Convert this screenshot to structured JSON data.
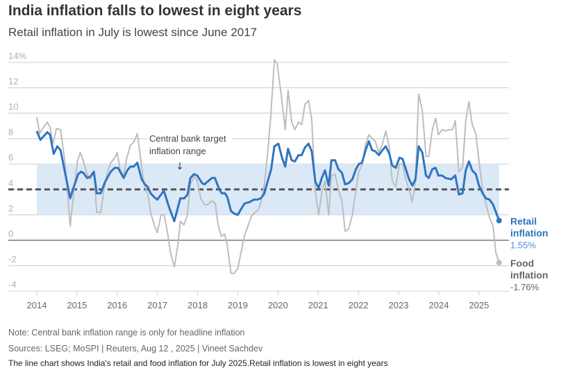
{
  "header": {
    "title": "India inflation falls to lowest in eight years",
    "subtitle": "Retail inflation in July is lowest since June 2017"
  },
  "chart_data": {
    "type": "line",
    "title": "India inflation falls to lowest in eight years",
    "xlabel": "",
    "ylabel": "%",
    "xlim": [
      2013.35,
      2025.85
    ],
    "ylim": [
      -4,
      14
    ],
    "x_ticks": [
      2014,
      2015,
      2016,
      2017,
      2018,
      2019,
      2020,
      2021,
      2022,
      2023,
      2024,
      2025
    ],
    "y_ticks": [
      {
        "v": 14,
        "label": "14%"
      },
      {
        "v": 12,
        "label": "12"
      },
      {
        "v": 10,
        "label": "10"
      },
      {
        "v": 8,
        "label": "8"
      },
      {
        "v": 6,
        "label": "6"
      },
      {
        "v": 4,
        "label": "4"
      },
      {
        "v": 2,
        "label": "2"
      },
      {
        "v": 0,
        "label": "0"
      },
      {
        "v": -2,
        "label": "-2"
      },
      {
        "v": -4,
        "label": "-4"
      }
    ],
    "target_band": {
      "low": 2,
      "high": 6,
      "midpoint": 4,
      "annotation_line1": "Central bank target",
      "annotation_line2": "inflation range",
      "arrow": "↓"
    },
    "series": [
      {
        "name": "Retail inflation",
        "label_line1": "Retail",
        "label_line2": "inflation",
        "last_value_label": "1.55%",
        "color": "#2f74c0",
        "points": [
          [
            2014.0,
            8.6
          ],
          [
            2014.09,
            7.9
          ],
          [
            2014.26,
            8.5
          ],
          [
            2014.33,
            8.3
          ],
          [
            2014.42,
            6.8
          ],
          [
            2014.51,
            7.4
          ],
          [
            2014.59,
            7.1
          ],
          [
            2014.69,
            5.5
          ],
          [
            2014.83,
            3.3
          ],
          [
            2014.92,
            4.2
          ],
          [
            2015.03,
            5.2
          ],
          [
            2015.1,
            5.4
          ],
          [
            2015.16,
            5.3
          ],
          [
            2015.25,
            4.9
          ],
          [
            2015.33,
            5.0
          ],
          [
            2015.42,
            5.4
          ],
          [
            2015.49,
            3.7
          ],
          [
            2015.59,
            3.7
          ],
          [
            2015.7,
            4.6
          ],
          [
            2015.84,
            5.4
          ],
          [
            2015.94,
            5.7
          ],
          [
            2016.02,
            5.7
          ],
          [
            2016.16,
            4.9
          ],
          [
            2016.25,
            5.5
          ],
          [
            2016.33,
            5.8
          ],
          [
            2016.41,
            5.8
          ],
          [
            2016.5,
            6.1
          ],
          [
            2016.61,
            4.8
          ],
          [
            2016.69,
            4.4
          ],
          [
            2016.76,
            4.2
          ],
          [
            2016.83,
            3.7
          ],
          [
            2016.92,
            3.4
          ],
          [
            2017.0,
            3.2
          ],
          [
            2017.16,
            3.9
          ],
          [
            2017.28,
            2.7
          ],
          [
            2017.42,
            1.5
          ],
          [
            2017.57,
            3.3
          ],
          [
            2017.67,
            3.3
          ],
          [
            2017.75,
            3.6
          ],
          [
            2017.82,
            4.9
          ],
          [
            2017.91,
            5.2
          ],
          [
            2017.99,
            5.1
          ],
          [
            2018.11,
            4.5
          ],
          [
            2018.17,
            4.4
          ],
          [
            2018.28,
            4.7
          ],
          [
            2018.36,
            4.9
          ],
          [
            2018.43,
            4.9
          ],
          [
            2018.54,
            4.0
          ],
          [
            2018.6,
            3.7
          ],
          [
            2018.68,
            3.7
          ],
          [
            2018.74,
            3.4
          ],
          [
            2018.83,
            2.3
          ],
          [
            2018.91,
            2.1
          ],
          [
            2019.0,
            2.0
          ],
          [
            2019.09,
            2.5
          ],
          [
            2019.17,
            2.9
          ],
          [
            2019.29,
            3.0
          ],
          [
            2019.4,
            3.2
          ],
          [
            2019.49,
            3.2
          ],
          [
            2019.57,
            3.3
          ],
          [
            2019.65,
            3.6
          ],
          [
            2019.75,
            4.7
          ],
          [
            2019.83,
            5.6
          ],
          [
            2019.91,
            7.4
          ],
          [
            2020.01,
            7.6
          ],
          [
            2020.1,
            6.5
          ],
          [
            2020.18,
            5.8
          ],
          [
            2020.25,
            7.2
          ],
          [
            2020.34,
            6.3
          ],
          [
            2020.42,
            6.2
          ],
          [
            2020.51,
            6.7
          ],
          [
            2020.59,
            6.7
          ],
          [
            2020.67,
            7.3
          ],
          [
            2020.76,
            7.6
          ],
          [
            2020.84,
            7.0
          ],
          [
            2020.93,
            4.6
          ],
          [
            2021.01,
            4.1
          ],
          [
            2021.09,
            4.9
          ],
          [
            2021.17,
            5.5
          ],
          [
            2021.26,
            4.3
          ],
          [
            2021.33,
            6.3
          ],
          [
            2021.42,
            6.3
          ],
          [
            2021.5,
            5.6
          ],
          [
            2021.59,
            5.3
          ],
          [
            2021.67,
            4.4
          ],
          [
            2021.76,
            4.5
          ],
          [
            2021.85,
            4.8
          ],
          [
            2021.94,
            5.6
          ],
          [
            2022.01,
            6.0
          ],
          [
            2022.09,
            6.1
          ],
          [
            2022.18,
            7.1
          ],
          [
            2022.26,
            7.8
          ],
          [
            2022.34,
            7.1
          ],
          [
            2022.42,
            7.0
          ],
          [
            2022.51,
            6.7
          ],
          [
            2022.6,
            7.1
          ],
          [
            2022.68,
            7.4
          ],
          [
            2022.77,
            6.8
          ],
          [
            2022.84,
            5.9
          ],
          [
            2022.93,
            5.7
          ],
          [
            2023.02,
            6.5
          ],
          [
            2023.1,
            6.4
          ],
          [
            2023.17,
            5.7
          ],
          [
            2023.26,
            4.8
          ],
          [
            2023.34,
            4.3
          ],
          [
            2023.42,
            4.8
          ],
          [
            2023.5,
            7.4
          ],
          [
            2023.59,
            6.9
          ],
          [
            2023.68,
            5.1
          ],
          [
            2023.75,
            4.9
          ],
          [
            2023.84,
            5.6
          ],
          [
            2023.92,
            5.7
          ],
          [
            2023.99,
            5.1
          ],
          [
            2024.08,
            5.1
          ],
          [
            2024.17,
            4.9
          ],
          [
            2024.31,
            4.8
          ],
          [
            2024.41,
            5.1
          ],
          [
            2024.5,
            3.6
          ],
          [
            2024.59,
            3.7
          ],
          [
            2024.67,
            5.5
          ],
          [
            2024.75,
            6.2
          ],
          [
            2024.83,
            5.5
          ],
          [
            2024.92,
            5.2
          ],
          [
            2025.0,
            4.3
          ],
          [
            2025.09,
            3.7
          ],
          [
            2025.17,
            3.3
          ],
          [
            2025.26,
            3.2
          ],
          [
            2025.35,
            2.8
          ],
          [
            2025.5,
            1.55
          ]
        ]
      },
      {
        "name": "Food inflation",
        "label_line1": "Food",
        "label_line2": "inflation",
        "last_value_label": "-1.76%",
        "color": "#bdbdbd",
        "points": [
          [
            2014.0,
            9.7
          ],
          [
            2014.07,
            8.4
          ],
          [
            2014.17,
            8.9
          ],
          [
            2014.26,
            9.3
          ],
          [
            2014.33,
            8.9
          ],
          [
            2014.4,
            7.6
          ],
          [
            2014.49,
            8.8
          ],
          [
            2014.59,
            8.7
          ],
          [
            2014.69,
            6.4
          ],
          [
            2014.76,
            4.0
          ],
          [
            2014.83,
            1.1
          ],
          [
            2014.92,
            3.8
          ],
          [
            2015.01,
            6.2
          ],
          [
            2015.08,
            6.9
          ],
          [
            2015.16,
            6.2
          ],
          [
            2015.25,
            5.2
          ],
          [
            2015.33,
            4.8
          ],
          [
            2015.42,
            5.4
          ],
          [
            2015.49,
            2.2
          ],
          [
            2015.59,
            2.2
          ],
          [
            2015.67,
            4.0
          ],
          [
            2015.75,
            5.3
          ],
          [
            2015.84,
            6.1
          ],
          [
            2015.94,
            6.5
          ],
          [
            2016.0,
            6.9
          ],
          [
            2016.07,
            5.6
          ],
          [
            2016.16,
            5.1
          ],
          [
            2016.24,
            6.5
          ],
          [
            2016.33,
            7.5
          ],
          [
            2016.41,
            7.7
          ],
          [
            2016.5,
            8.4
          ],
          [
            2016.59,
            6.2
          ],
          [
            2016.67,
            4.4
          ],
          [
            2016.76,
            3.6
          ],
          [
            2016.84,
            2.1
          ],
          [
            2016.92,
            1.2
          ],
          [
            2017.0,
            0.6
          ],
          [
            2017.09,
            2.0
          ],
          [
            2017.17,
            2.0
          ],
          [
            2017.25,
            0.6
          ],
          [
            2017.33,
            -1.0
          ],
          [
            2017.42,
            -2.1
          ],
          [
            2017.51,
            -0.4
          ],
          [
            2017.57,
            1.5
          ],
          [
            2017.66,
            1.2
          ],
          [
            2017.74,
            1.9
          ],
          [
            2017.82,
            4.4
          ],
          [
            2017.91,
            5.0
          ],
          [
            2017.99,
            4.7
          ],
          [
            2018.08,
            3.3
          ],
          [
            2018.17,
            2.8
          ],
          [
            2018.25,
            2.8
          ],
          [
            2018.36,
            3.1
          ],
          [
            2018.44,
            2.9
          ],
          [
            2018.51,
            1.2
          ],
          [
            2018.59,
            0.3
          ],
          [
            2018.67,
            0.5
          ],
          [
            2018.74,
            -0.4
          ],
          [
            2018.83,
            -2.6
          ],
          [
            2018.91,
            -2.6
          ],
          [
            2019.0,
            -2.2
          ],
          [
            2019.09,
            -0.8
          ],
          [
            2019.17,
            0.4
          ],
          [
            2019.26,
            1.2
          ],
          [
            2019.34,
            1.9
          ],
          [
            2019.43,
            2.2
          ],
          [
            2019.51,
            2.4
          ],
          [
            2019.57,
            2.9
          ],
          [
            2019.66,
            4.4
          ],
          [
            2019.75,
            7.1
          ],
          [
            2019.82,
            9.8
          ],
          [
            2019.91,
            14.2
          ],
          [
            2019.98,
            13.9
          ],
          [
            2020.1,
            10.9
          ],
          [
            2020.18,
            8.7
          ],
          [
            2020.25,
            11.8
          ],
          [
            2020.34,
            9.3
          ],
          [
            2020.42,
            8.7
          ],
          [
            2020.51,
            9.3
          ],
          [
            2020.59,
            9.1
          ],
          [
            2020.67,
            10.7
          ],
          [
            2020.76,
            11.0
          ],
          [
            2020.84,
            9.5
          ],
          [
            2020.93,
            3.8
          ],
          [
            2021.01,
            2.0
          ],
          [
            2021.09,
            3.8
          ],
          [
            2021.17,
            4.7
          ],
          [
            2021.26,
            2.0
          ],
          [
            2021.33,
            5.1
          ],
          [
            2021.42,
            5.2
          ],
          [
            2021.5,
            4.0
          ],
          [
            2021.59,
            3.1
          ],
          [
            2021.67,
            0.7
          ],
          [
            2021.76,
            0.9
          ],
          [
            2021.85,
            2.0
          ],
          [
            2021.94,
            4.0
          ],
          [
            2022.01,
            5.4
          ],
          [
            2022.09,
            5.9
          ],
          [
            2022.18,
            7.6
          ],
          [
            2022.26,
            8.3
          ],
          [
            2022.34,
            8.0
          ],
          [
            2022.42,
            7.8
          ],
          [
            2022.51,
            6.9
          ],
          [
            2022.6,
            7.6
          ],
          [
            2022.68,
            8.6
          ],
          [
            2022.77,
            7.3
          ],
          [
            2022.84,
            4.7
          ],
          [
            2022.93,
            4.2
          ],
          [
            2023.02,
            6.0
          ],
          [
            2023.1,
            6.0
          ],
          [
            2023.17,
            4.9
          ],
          [
            2023.26,
            4.0
          ],
          [
            2023.34,
            3.0
          ],
          [
            2023.42,
            4.7
          ],
          [
            2023.5,
            11.5
          ],
          [
            2023.59,
            10.2
          ],
          [
            2023.68,
            6.6
          ],
          [
            2023.75,
            6.6
          ],
          [
            2023.84,
            8.7
          ],
          [
            2023.92,
            9.6
          ],
          [
            2023.99,
            8.3
          ],
          [
            2024.08,
            8.7
          ],
          [
            2024.17,
            8.6
          ],
          [
            2024.25,
            8.7
          ],
          [
            2024.34,
            8.7
          ],
          [
            2024.41,
            9.4
          ],
          [
            2024.5,
            5.4
          ],
          [
            2024.59,
            5.7
          ],
          [
            2024.67,
            9.4
          ],
          [
            2024.75,
            10.9
          ],
          [
            2024.83,
            9.1
          ],
          [
            2024.92,
            8.4
          ],
          [
            2025.0,
            6.2
          ],
          [
            2025.09,
            4.0
          ],
          [
            2025.17,
            2.9
          ],
          [
            2025.26,
            1.8
          ],
          [
            2025.35,
            1.1
          ],
          [
            2025.42,
            -1.0
          ],
          [
            2025.5,
            -1.76
          ]
        ]
      }
    ]
  },
  "footer": {
    "note": "Note: Central bank inflation range is only for headline inflation",
    "sources": "Sources: LSEG; MoSPI | Reuters, Aug 12 , 2025 | Vineet Sachdev",
    "description": "The line chart shows India's retail and food inflation for July 2025.Retail inflation is lowest in eight years"
  }
}
